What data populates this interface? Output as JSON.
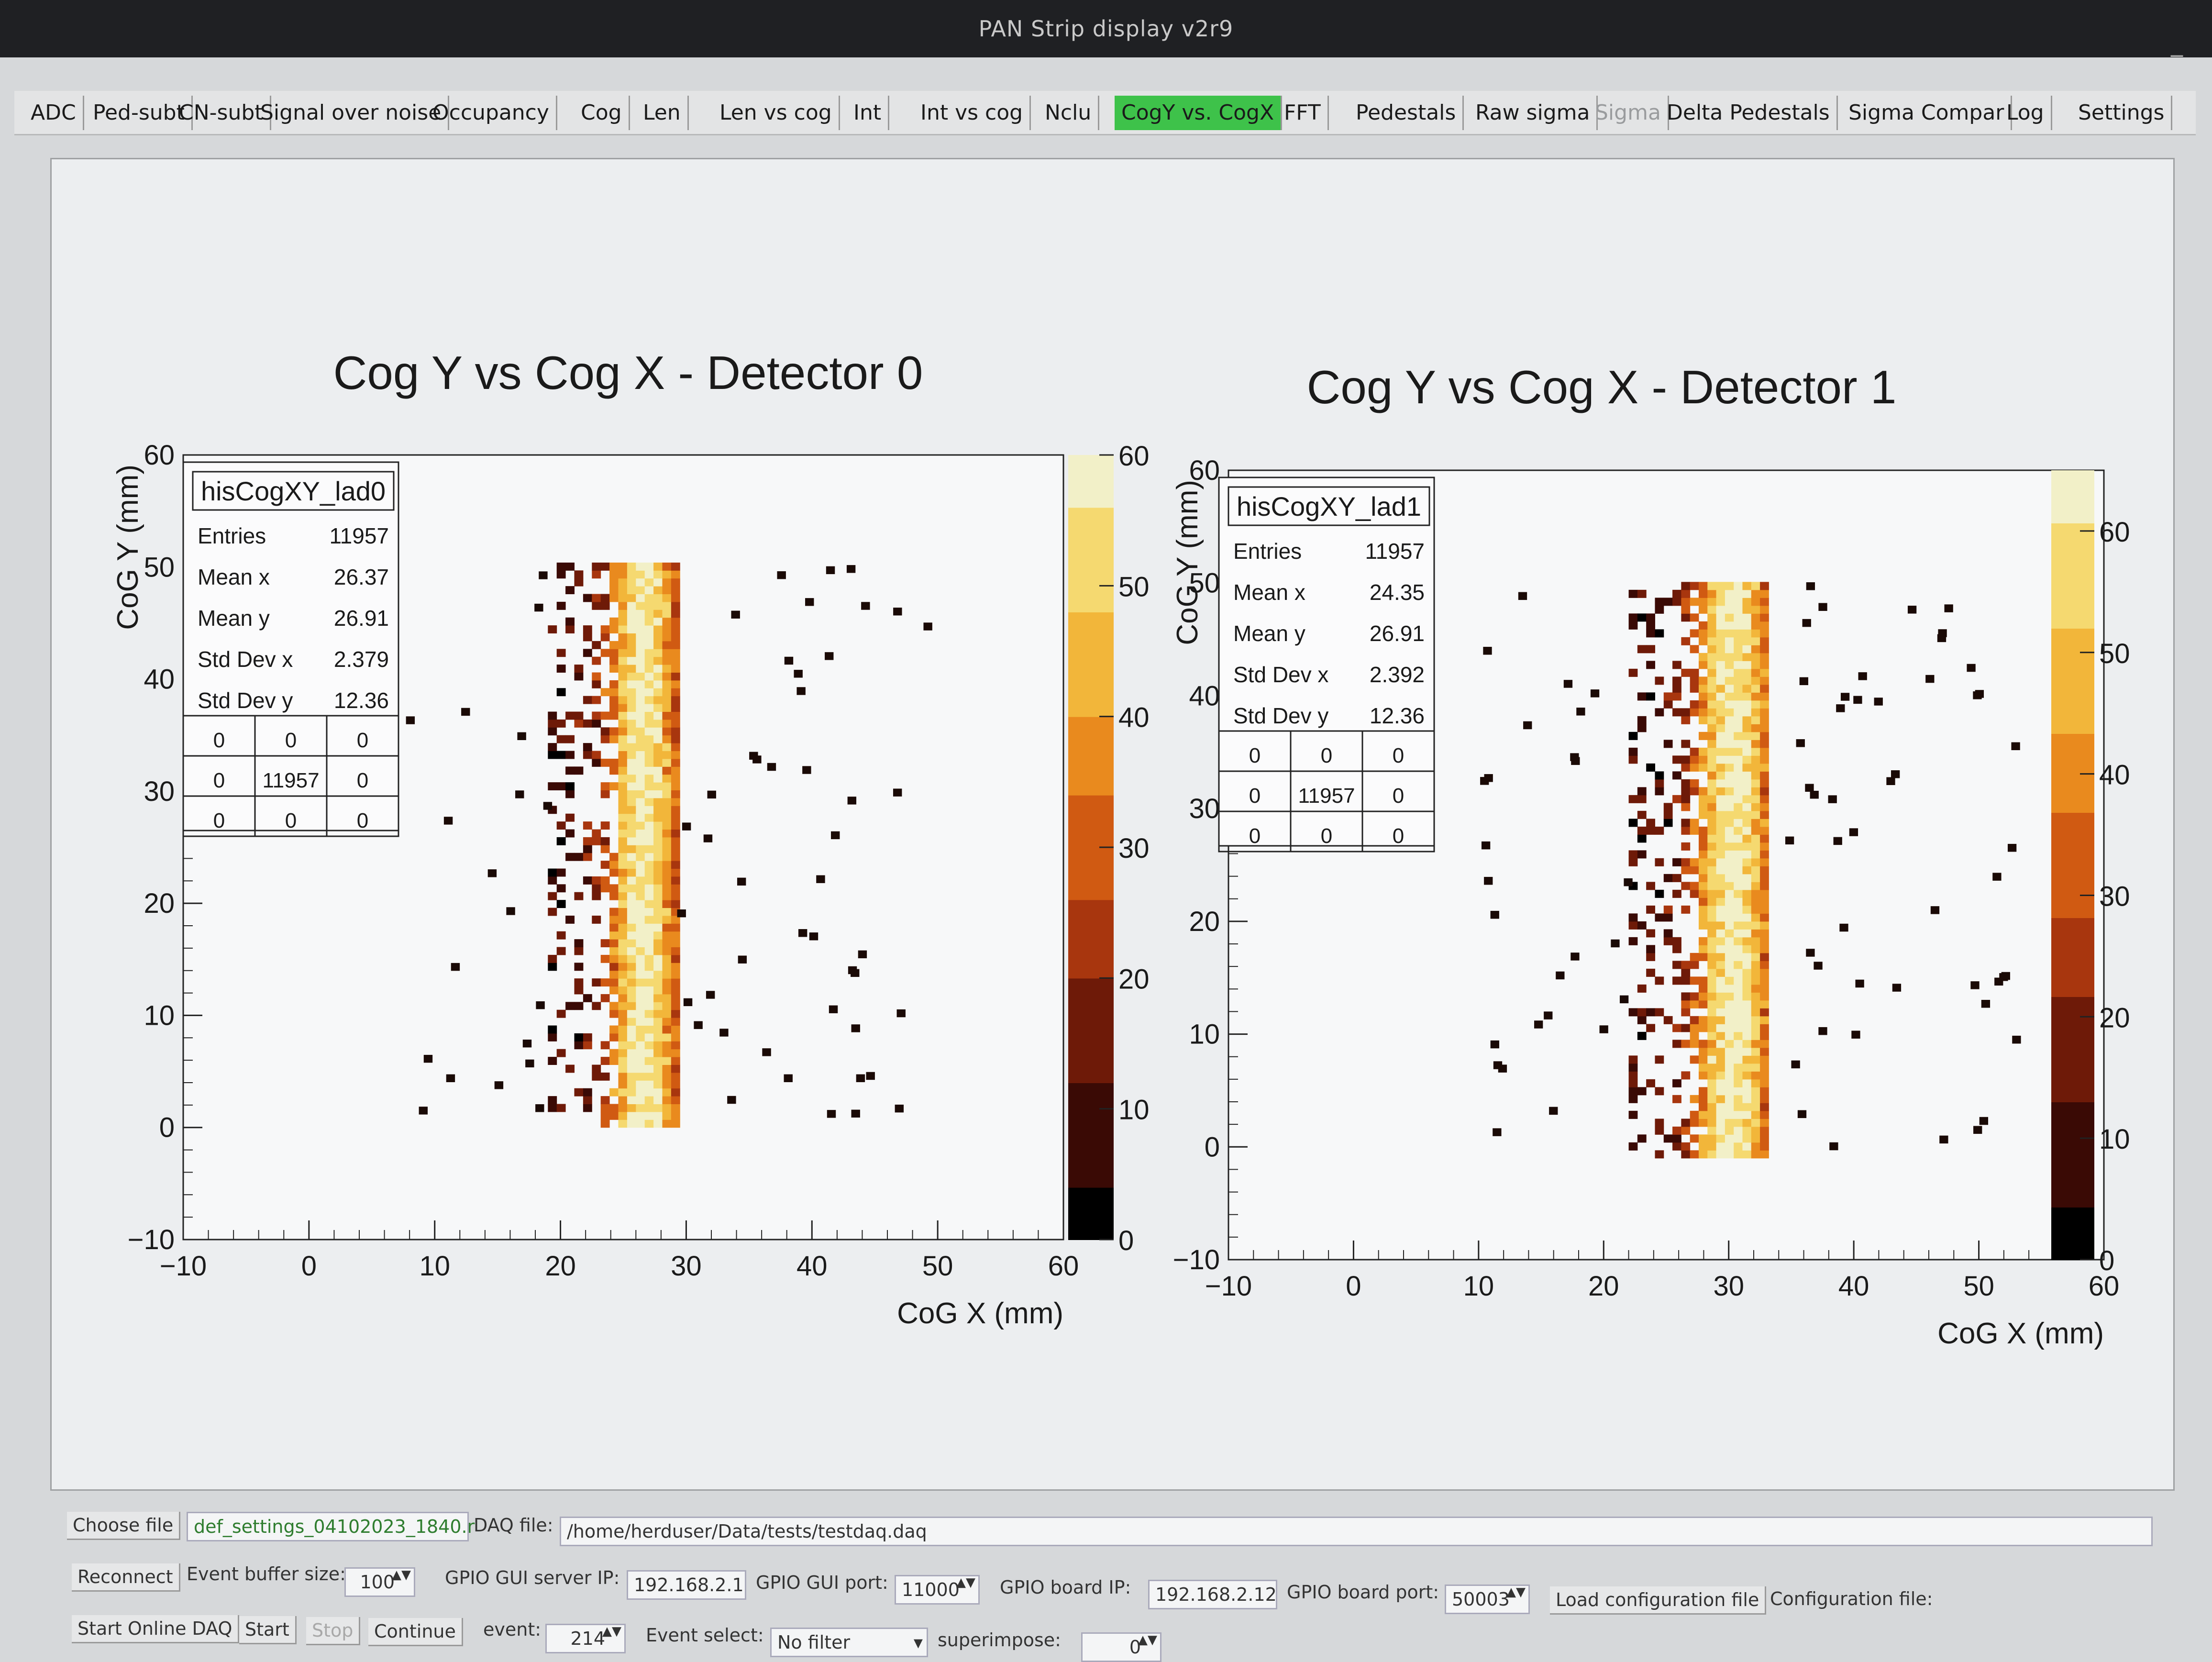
{
  "window": {
    "title": "PAN Strip display v2r9",
    "minimize": "_"
  },
  "tabs": [
    {
      "label": "ADC",
      "state": "normal"
    },
    {
      "label": "Ped-subt",
      "state": "normal"
    },
    {
      "label": "CN-subt",
      "state": "normal"
    },
    {
      "label": "Signal over noise",
      "state": "normal"
    },
    {
      "label": "Occupancy",
      "state": "normal"
    },
    {
      "label": "Cog",
      "state": "normal"
    },
    {
      "label": "Len",
      "state": "normal"
    },
    {
      "label": "Len vs cog",
      "state": "normal"
    },
    {
      "label": "Int",
      "state": "normal"
    },
    {
      "label": "Int vs cog",
      "state": "normal"
    },
    {
      "label": "Nclu",
      "state": "normal"
    },
    {
      "label": "CogY vs. CogX",
      "state": "active"
    },
    {
      "label": "FFT",
      "state": "normal"
    },
    {
      "label": "Pedestals",
      "state": "normal"
    },
    {
      "label": "Raw sigma",
      "state": "normal"
    },
    {
      "label": "Sigma",
      "state": "disabled"
    },
    {
      "label": "Delta Pedestals",
      "state": "normal"
    },
    {
      "label": "Sigma Compar",
      "state": "normal"
    },
    {
      "label": "Log",
      "state": "normal"
    },
    {
      "label": "Settings",
      "state": "normal"
    }
  ],
  "colors": {
    "active_tab": "#3ec24a",
    "palette": [
      "#000000",
      "#3a0a05",
      "#6e1a08",
      "#a8360e",
      "#d05a12",
      "#e98a1e",
      "#f2b63a",
      "#f5d970",
      "#f2f0c8"
    ]
  },
  "chart_data": [
    {
      "type": "heatmap",
      "title": "Cog Y vs Cog X - Detector 0",
      "xlabel": "CoG X (mm)",
      "ylabel": "CoG Y (mm)",
      "xlim": [
        -10,
        60
      ],
      "ylim": [
        -10,
        60
      ],
      "x_ticks": [
        "−10",
        "0",
        "10",
        "20",
        "30",
        "40",
        "50",
        "60"
      ],
      "y_ticks": [
        "−10",
        "0",
        "10",
        "20",
        "30",
        "40",
        "50",
        "60"
      ],
      "z_range": [
        0,
        60
      ],
      "z_ticks": [
        "0",
        "10",
        "20",
        "30",
        "40",
        "50",
        "60"
      ],
      "band": {
        "x_min": 19,
        "x_max": 29,
        "y_min": 0,
        "y_max": 50
      },
      "stats": {
        "name": "hisCogXY_lad0",
        "rows": [
          [
            "Entries",
            "11957"
          ],
          [
            "Mean x",
            "26.37"
          ],
          [
            "Mean y",
            "26.91"
          ],
          [
            "Std Dev x",
            "2.379"
          ],
          [
            "Std Dev y",
            "12.36"
          ]
        ],
        "grid": [
          [
            "0",
            "0",
            "0"
          ],
          [
            "0",
            "11957",
            "0"
          ],
          [
            "0",
            "0",
            "0"
          ]
        ]
      }
    },
    {
      "type": "heatmap",
      "title": "Cog Y vs Cog X - Detector 1",
      "xlabel": "CoG X (mm)",
      "ylabel": "CoG Y (mm)",
      "xlim": [
        -10,
        60
      ],
      "ylim": [
        -10,
        60
      ],
      "x_ticks": [
        "−10",
        "0",
        "10",
        "20",
        "30",
        "40",
        "50",
        "60"
      ],
      "y_ticks": [
        "−10",
        "0",
        "10",
        "20",
        "30",
        "40",
        "50",
        "60"
      ],
      "z_range": [
        0,
        65
      ],
      "z_ticks": [
        "0",
        "10",
        "20",
        "30",
        "40",
        "50",
        "60"
      ],
      "band": {
        "x_min": 22,
        "x_max": 33,
        "y_min": -1,
        "y_max": 50
      },
      "stats": {
        "name": "hisCogXY_lad1",
        "rows": [
          [
            "Entries",
            "11957"
          ],
          [
            "Mean x",
            "24.35"
          ],
          [
            "Mean y",
            "26.91"
          ],
          [
            "Std Dev x",
            "2.392"
          ],
          [
            "Std Dev y",
            "12.36"
          ]
        ],
        "grid": [
          [
            "0",
            "0",
            "0"
          ],
          [
            "0",
            "11957",
            "0"
          ],
          [
            "0",
            "0",
            "0"
          ]
        ]
      }
    }
  ],
  "controls": {
    "choose_file": "Choose file",
    "settings_file": "def_settings_04102023_1840.r",
    "daq_file_label": "DAQ file:",
    "daq_file": "/home/herduser/Data/tests/testdaq.daq",
    "reconnect": "Reconnect",
    "event_buffer_label": "Event buffer size:",
    "event_buffer": "100",
    "gpio_gui_ip_label": "GPIO GUI server IP:",
    "gpio_gui_ip": "192.168.2.1",
    "gpio_gui_port_label": "GPIO GUI port:",
    "gpio_gui_port": "11000",
    "gpio_board_ip_label": "GPIO board IP:",
    "gpio_board_ip": "192.168.2.12",
    "gpio_board_port_label": "GPIO board port:",
    "gpio_board_port": "50003",
    "load_config": "Load configuration file",
    "config_file_label": "Configuration file:",
    "start_online": "Start Online DAQ",
    "start": "Start",
    "stop": "Stop",
    "continue": "Continue",
    "event_label": "event:",
    "event": "214",
    "event_select_label": "Event select:",
    "event_select": "No filter",
    "superimpose_label": "superimpose:",
    "superimpose": "0",
    "spin_arrows": "▲▼"
  }
}
